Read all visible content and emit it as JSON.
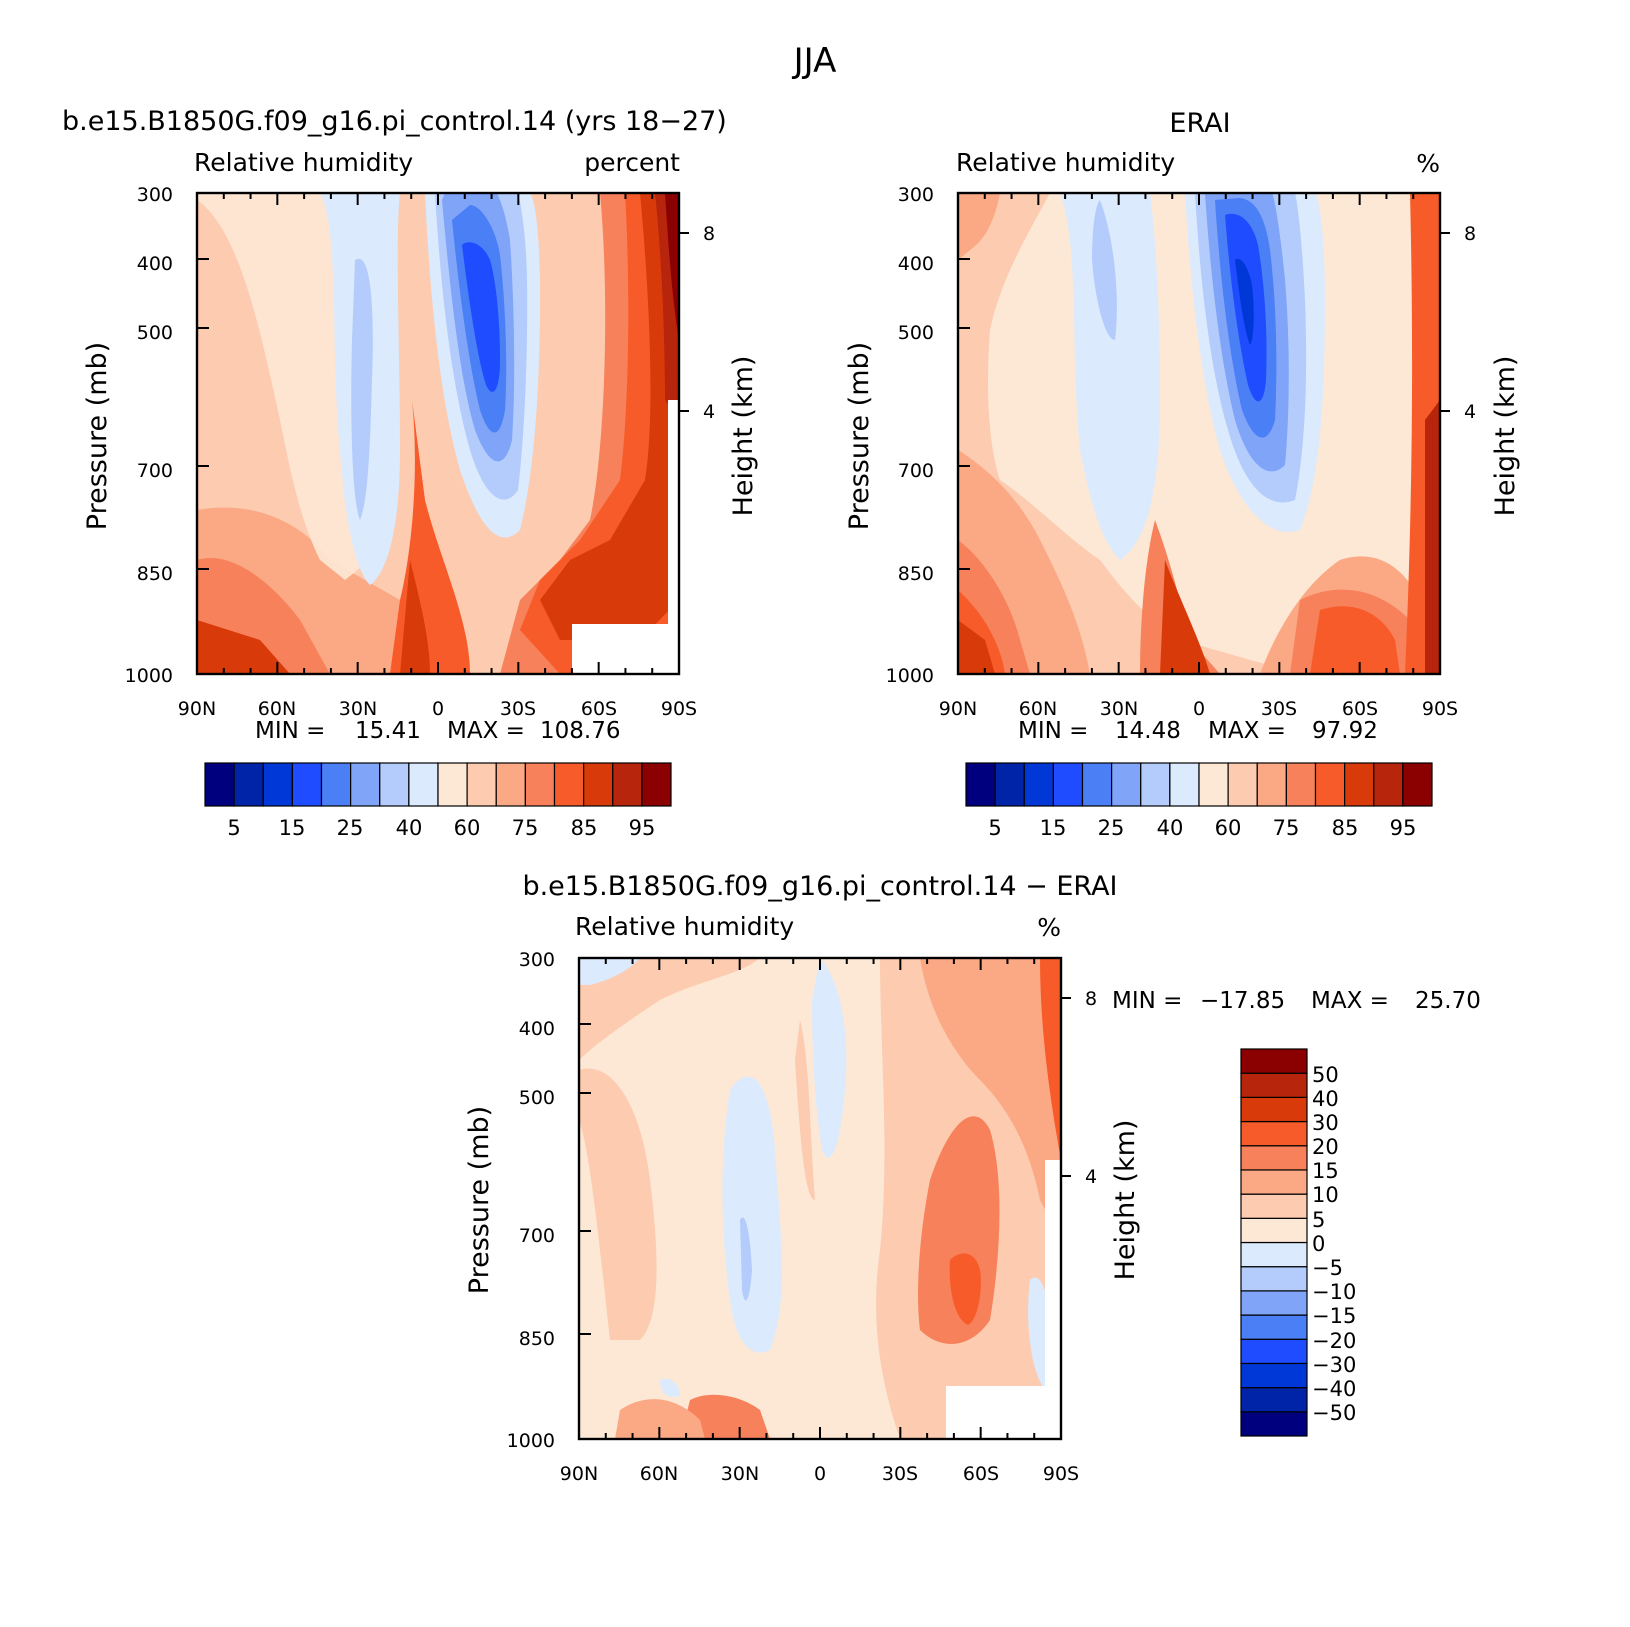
{
  "figure": {
    "title": "JJA"
  },
  "colors": {
    "full_levels": [
      "#00007f",
      "#0024a8",
      "#0038d8",
      "#1f4cff",
      "#4a7ff6",
      "#7fa4f8",
      "#b3ccfb",
      "#dbeafd",
      "#fde8d6",
      "#fccbb0",
      "#fba884",
      "#f7815a",
      "#f85b2a",
      "#d93a0a",
      "#b7250c",
      "#8b0000"
    ],
    "diff_levels": [
      "#00007f",
      "#0024a8",
      "#0038d8",
      "#1f4cff",
      "#4a7ff6",
      "#7fa4f8",
      "#b3ccfb",
      "#dbeafd",
      "#fde8d6",
      "#fccbb0",
      "#fba884",
      "#f7815a",
      "#f85b2a",
      "#d93a0a",
      "#b7250c",
      "#8b0000"
    ]
  },
  "chart_data": [
    {
      "id": "model",
      "type": "heatmap",
      "title": "b.e15.B1850G.f09_g16.pi_control.14 (yrs 18-27)",
      "left_label": "Relative humidity",
      "right_label": "percent",
      "xlabel": "",
      "ylabel": "Pressure (mb)",
      "y2label": "Height (km)",
      "x_ticks": [
        "90N",
        "60N",
        "30N",
        "0",
        "30S",
        "60S",
        "90S"
      ],
      "y_ticks": [
        300,
        400,
        500,
        700,
        850,
        1000
      ],
      "y2_ticks": [
        8,
        4
      ],
      "ylim": [
        300,
        1000
      ],
      "min_label": "MIN =",
      "min": "15.41",
      "max_label": "MAX =",
      "max": "108.76",
      "colorbar_labels": [
        "5",
        "15",
        "25",
        "40",
        "60",
        "75",
        "85",
        "95"
      ],
      "grid": false
    },
    {
      "id": "obs",
      "type": "heatmap",
      "title": "ERAI",
      "left_label": "Relative humidity",
      "right_label": "%",
      "xlabel": "",
      "ylabel": "Pressure (mb)",
      "y2label": "Height (km)",
      "x_ticks": [
        "90N",
        "60N",
        "30N",
        "0",
        "30S",
        "60S",
        "90S"
      ],
      "y_ticks": [
        300,
        400,
        500,
        700,
        850,
        1000
      ],
      "y2_ticks": [
        8,
        4
      ],
      "ylim": [
        300,
        1000
      ],
      "min_label": "MIN =",
      "min": "14.48",
      "max_label": "MAX =",
      "max": "97.92",
      "colorbar_labels": [
        "5",
        "15",
        "25",
        "40",
        "60",
        "75",
        "85",
        "95"
      ],
      "grid": false
    },
    {
      "id": "diff",
      "type": "heatmap",
      "title": "b.e15.B1850G.f09_g16.pi_control.14 - ERAI",
      "left_label": "Relative humidity",
      "right_label": "%",
      "xlabel": "",
      "ylabel": "Pressure (mb)",
      "y2label": "Height (km)",
      "x_ticks": [
        "90N",
        "60N",
        "30N",
        "0",
        "30S",
        "60S",
        "90S"
      ],
      "y_ticks": [
        300,
        400,
        500,
        700,
        850,
        1000
      ],
      "y2_ticks": [
        8,
        4
      ],
      "ylim": [
        300,
        1000
      ],
      "min_label": "MIN =",
      "min": "-17.85",
      "max_label": "MAX =",
      "max": "25.70",
      "colorbar_labels": [
        "50",
        "40",
        "30",
        "20",
        "15",
        "10",
        "5",
        "0",
        "-5",
        "-10",
        "-15",
        "-20",
        "-30",
        "-40",
        "-50"
      ],
      "grid": false
    }
  ]
}
